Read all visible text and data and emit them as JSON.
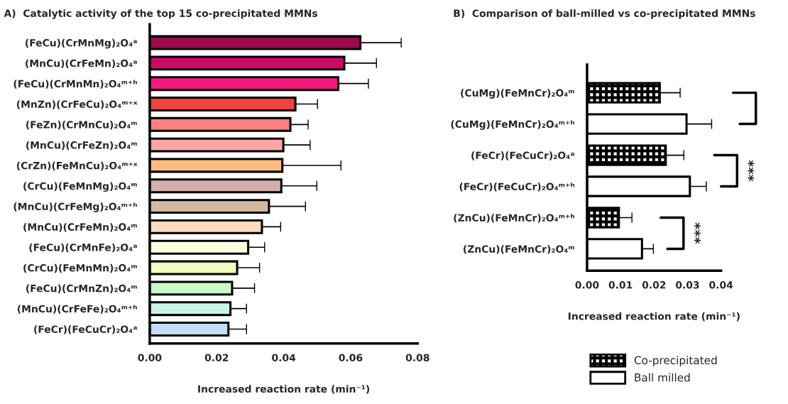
{
  "chart_data": [
    {
      "type": "bar",
      "orientation": "horizontal",
      "title": "A)  Catalytic activity of the top 15 co-precipitated MMNs",
      "xlabel": "Increased reaction rate (min⁻¹)",
      "categories": [
        "(FeCu)(CrMnMg)₂O₄ᵃ",
        "(MnCu)(CrFeMn)₂O₄ᵃ",
        "(FeCu)(CrMnMn)₂O₄ᵐ⁺ʰ",
        "(MnZn)(CrFeCu)₂O₄ᵐ⁺ˣ",
        "(FeZn)(CrMnCu)₂O₄ᵐ",
        "(MnCu)(CrFeZn)₂O₄ᵐ",
        "(CrZn)(FeMnCu)₂O₄ᵐ⁺ˣ",
        "(CrCu)(FeMnMg)₂O₄ᵐ",
        "(MnCu)(CrFeMg)₂O₄ᵐ⁺ʰ",
        "(MnCu)(CrFeMn)₂O₄ᵐ",
        "(FeCu)(CrMnFe)₂O₄ᵃ",
        "(CrCu)(FeMnMn)₂O₄ᵐ",
        "(FeCu)(CrMnZn)₂O₄ᵐ",
        "(MnCu)(CrFeFe)₂O₄ᵐ⁺ʰ",
        "(FeCr)(FeCuCr)₂O₄ᵃ"
      ],
      "values": [
        0.0629,
        0.0581,
        0.0563,
        0.0435,
        0.042,
        0.0399,
        0.0396,
        0.0393,
        0.0356,
        0.0335,
        0.0294,
        0.0261,
        0.0246,
        0.0241,
        0.0235
      ],
      "errors": [
        [
          0.0629,
          0.0751
        ],
        [
          0.0581,
          0.0677
        ],
        [
          0.0563,
          0.0653
        ],
        [
          0.0435,
          0.0501
        ],
        [
          0.042,
          0.0473
        ],
        [
          0.0399,
          0.0479
        ],
        [
          0.0396,
          0.0571
        ],
        [
          0.0393,
          0.0499
        ],
        [
          0.0356,
          0.0465
        ],
        [
          0.0335,
          0.0391
        ],
        [
          0.0294,
          0.0343
        ],
        [
          0.0261,
          0.0328
        ],
        [
          0.0246,
          0.0313
        ],
        [
          0.0241,
          0.0289
        ],
        [
          0.0235,
          0.0289
        ]
      ],
      "colors": [
        "#9b0a4a",
        "#cc0a66",
        "#f5197f",
        "#f44040",
        "#fb8080",
        "#fca5a5",
        "#fdbd80",
        "#d4aeae",
        "#d4b8a0",
        "#fddbbd",
        "#fdfde0",
        "#f3fdc0",
        "#c8fbc8",
        "#c8f5e6",
        "#c4dcf5"
      ],
      "xlim": [
        0,
        0.08
      ],
      "xticks": [
        {
          "value": 0,
          "label": "0.00"
        },
        {
          "value": 0.02,
          "label": "0.02"
        },
        {
          "value": 0.04,
          "label": "0.04"
        },
        {
          "value": 0.06,
          "label": "0.06"
        },
        {
          "value": 0.08,
          "label": "0.08"
        }
      ],
      "grid": false
    },
    {
      "type": "bar",
      "orientation": "horizontal",
      "title": "B)  Comparison of ball-milled vs co-precipitated MMNs",
      "xlabel": "Increased reaction rate (min⁻¹)",
      "categories": [
        "(CuMg)(FeMnCr)₂O₄ᵐ",
        "(CuMg)(FeMnCr)₂O₄ᵐ⁺ʰ",
        "(FeCr)(FeCuCr)₂O₄ᵃ",
        "(FeCr)(FeCuCr)₂O₄ᵐ⁺ʰ",
        "(ZnCu)(FeMnCr)₂O₄ᵐ⁺ʰ",
        "(ZnCu)(FeMnCr)₂O₄ᵐ"
      ],
      "series": [
        {
          "name": "Co-precipitated",
          "color": "#000000",
          "values": [
            0.0217,
            null,
            0.0235,
            null,
            0.0095,
            null
          ],
          "errors": [
            [
              0.0217,
              0.0278
            ],
            null,
            [
              0.0235,
              0.0289
            ],
            null,
            [
              0.0095,
              0.0134
            ],
            null
          ]
        },
        {
          "name": "Ball milled",
          "color": "#ffffff",
          "values": [
            null,
            0.0297,
            null,
            0.0307,
            null,
            0.0164
          ],
          "errors": [
            null,
            [
              0.0297,
              0.0372
            ],
            null,
            [
              0.0307,
              0.0356
            ],
            null,
            [
              0.0164,
              0.0198
            ]
          ]
        }
      ],
      "annotations": [
        "***",
        "***"
      ],
      "xlim": [
        0,
        0.04
      ],
      "xticks": [
        {
          "value": 0,
          "label": "0.00"
        },
        {
          "value": 0.01,
          "label": "0.01"
        },
        {
          "value": 0.02,
          "label": "0.02"
        },
        {
          "value": 0.03,
          "label": "0.03"
        },
        {
          "value": 0.04,
          "label": "0.04"
        }
      ],
      "grid": false,
      "legend": "bottom"
    }
  ]
}
